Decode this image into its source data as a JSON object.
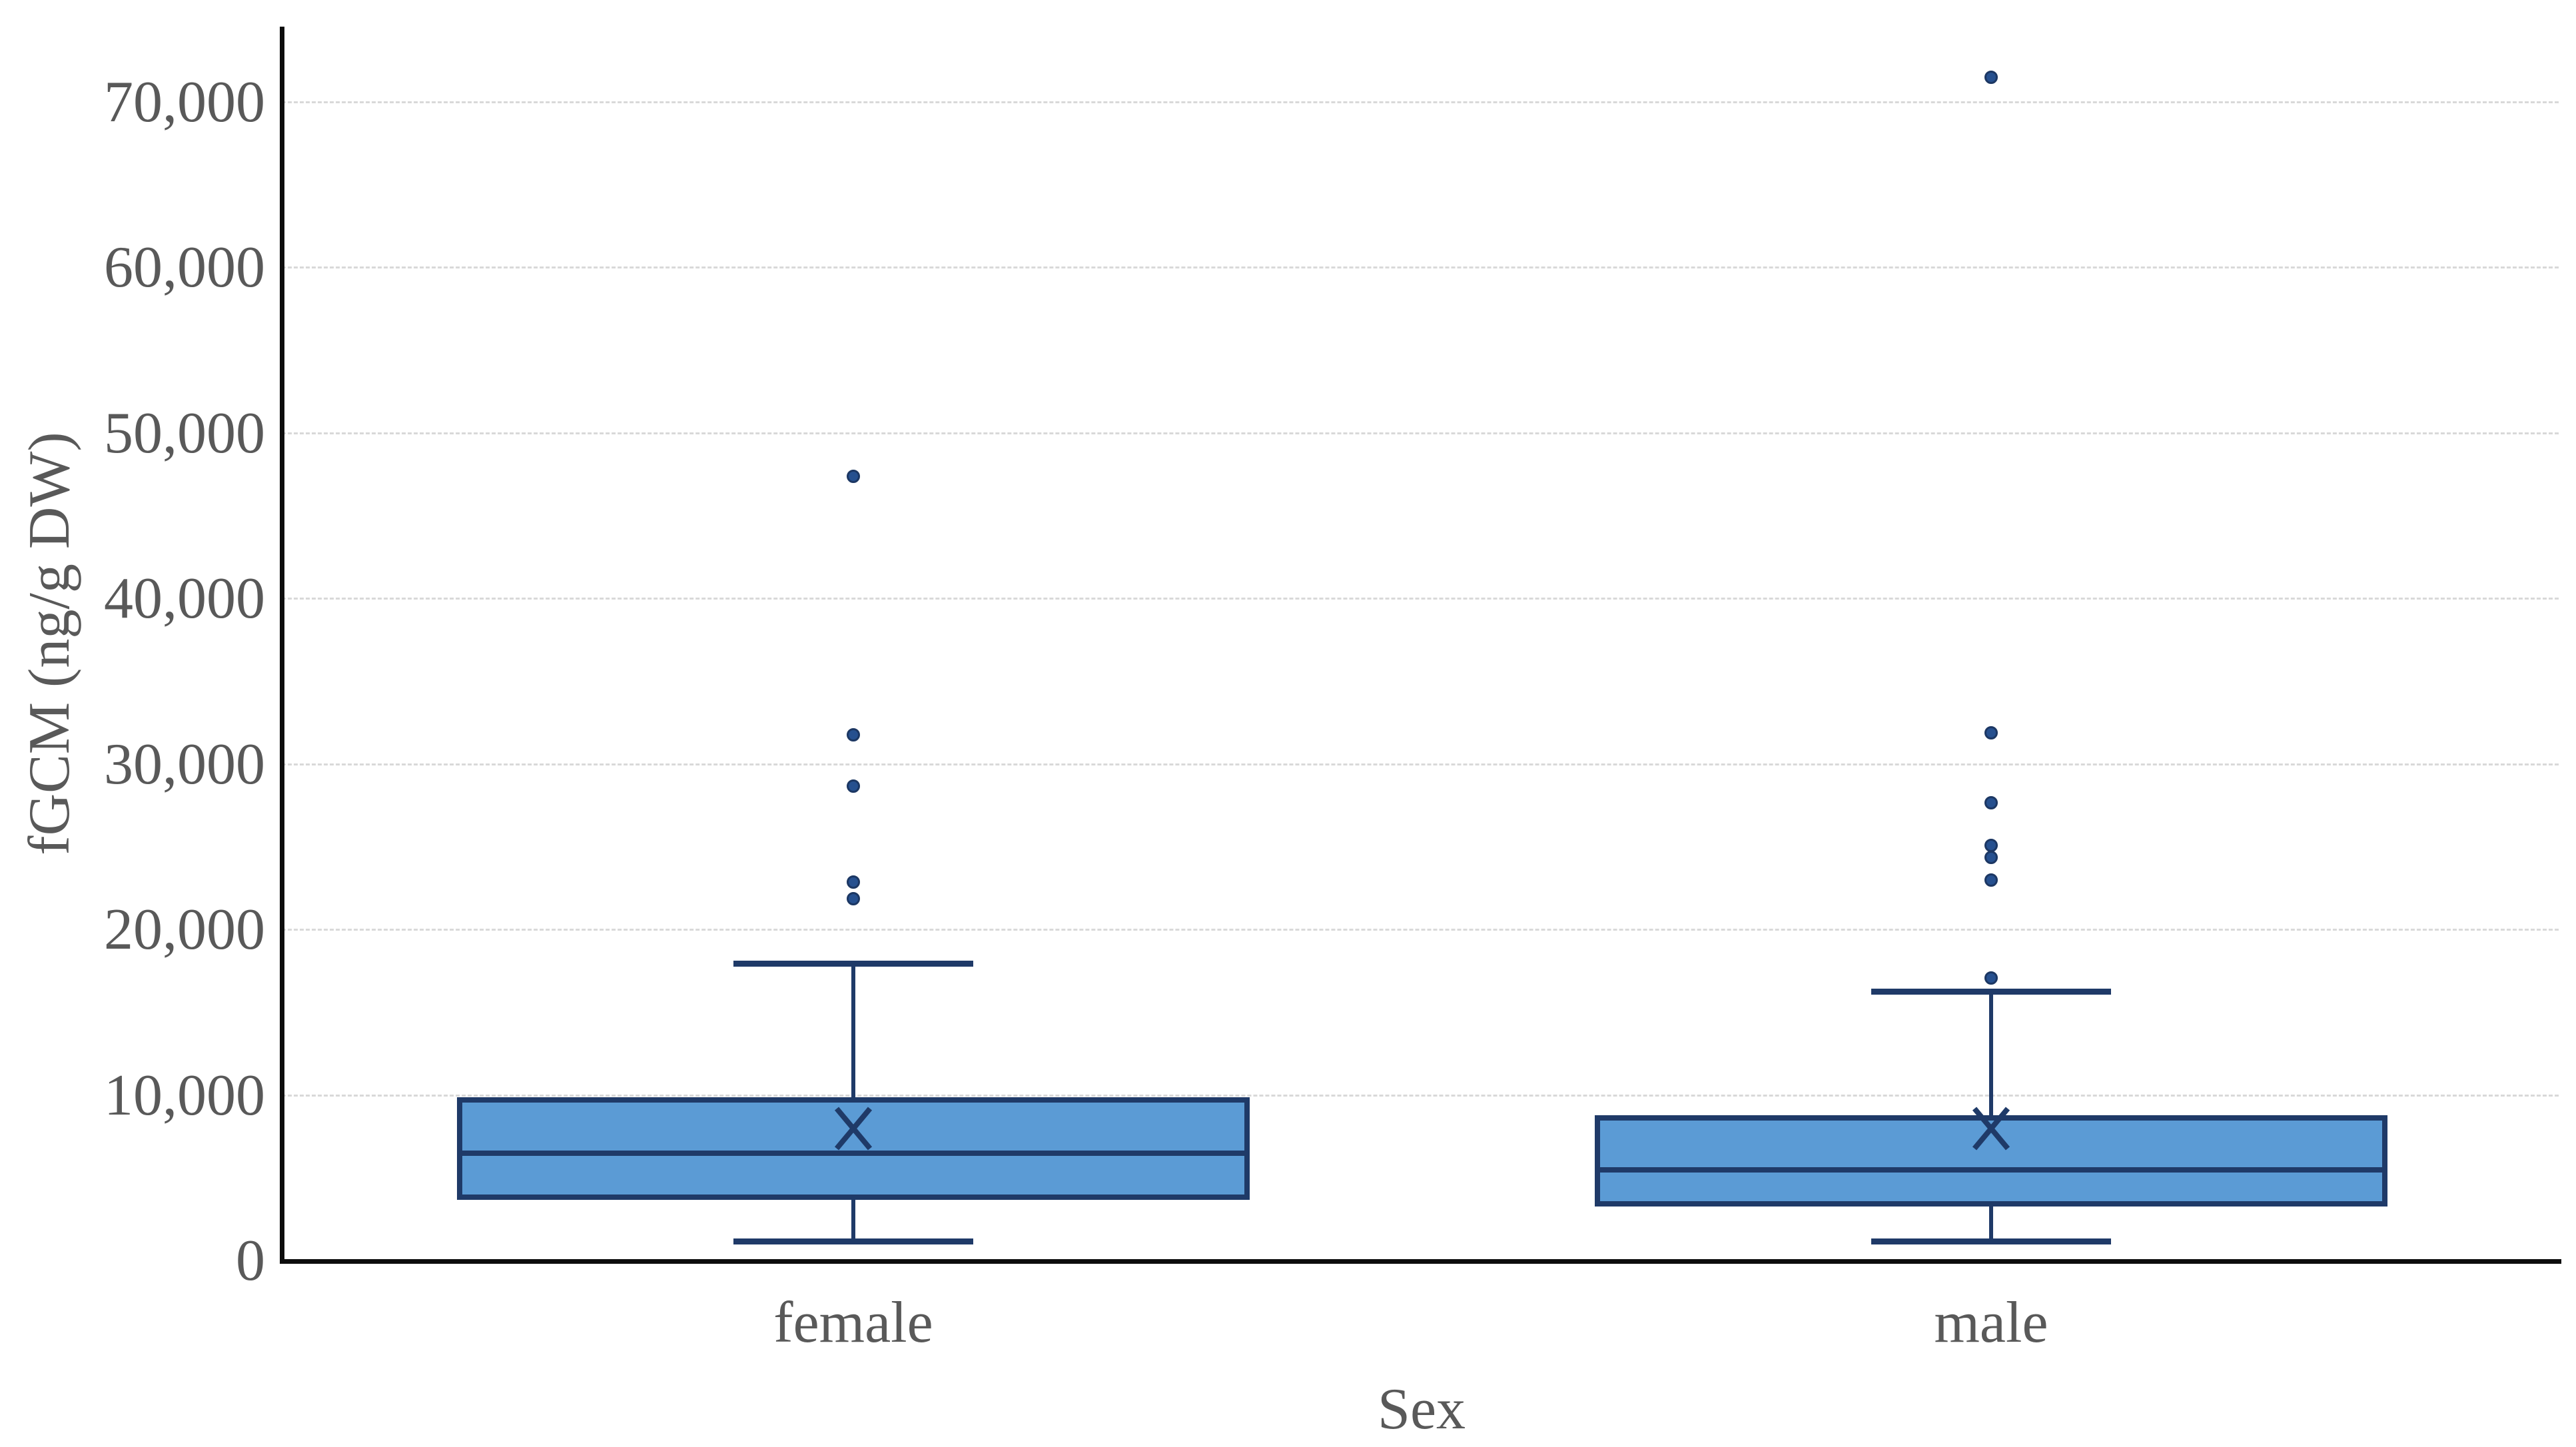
{
  "figure": {
    "background": "#ffffff"
  },
  "chart_data": {
    "type": "box",
    "title": "",
    "xlabel": "Sex",
    "ylabel": "fGCM (ng/g DW)",
    "categories": [
      "female",
      "male"
    ],
    "y_axis": {
      "min": 0,
      "max": 74500,
      "tick_interval": 10000,
      "ticks": [
        {
          "value": 0,
          "label": "0"
        },
        {
          "value": 10000,
          "label": "10,000"
        },
        {
          "value": 20000,
          "label": "20,000"
        },
        {
          "value": 30000,
          "label": "30,000"
        },
        {
          "value": 40000,
          "label": "40,000"
        },
        {
          "value": 50000,
          "label": "50,000"
        },
        {
          "value": 60000,
          "label": "60,000"
        },
        {
          "value": 70000,
          "label": "70,000"
        }
      ]
    },
    "series": [
      {
        "category": "female",
        "whisker_low": 1200,
        "q1": 3700,
        "median": 6500,
        "mean": 8000,
        "q3": 9900,
        "whisker_high": 18000,
        "outliers": [
          21900,
          22900,
          28700,
          31800,
          47400
        ]
      },
      {
        "category": "male",
        "whisker_low": 1200,
        "q1": 3300,
        "median": 5500,
        "mean": 8000,
        "q3": 8800,
        "whisker_high": 16300,
        "outliers": [
          17100,
          23000,
          24400,
          25100,
          27700,
          31900,
          71500
        ]
      }
    ],
    "grid": {
      "horizontal": true,
      "style": "dashed"
    },
    "legend": {
      "visible": false
    },
    "style": {
      "box_fill": "#5b9bd5",
      "box_border": "#1f3a68",
      "whisker_color": "#1f3a68",
      "median_color": "#1f3a68",
      "mean_marker_color": "#1f3a68",
      "outlier_fill": "#26508f",
      "outlier_border": "#1c3763",
      "gridline_color": "#d9d9d9",
      "axis_line_color": "#0d0d0d",
      "text_color": "#595959"
    }
  }
}
